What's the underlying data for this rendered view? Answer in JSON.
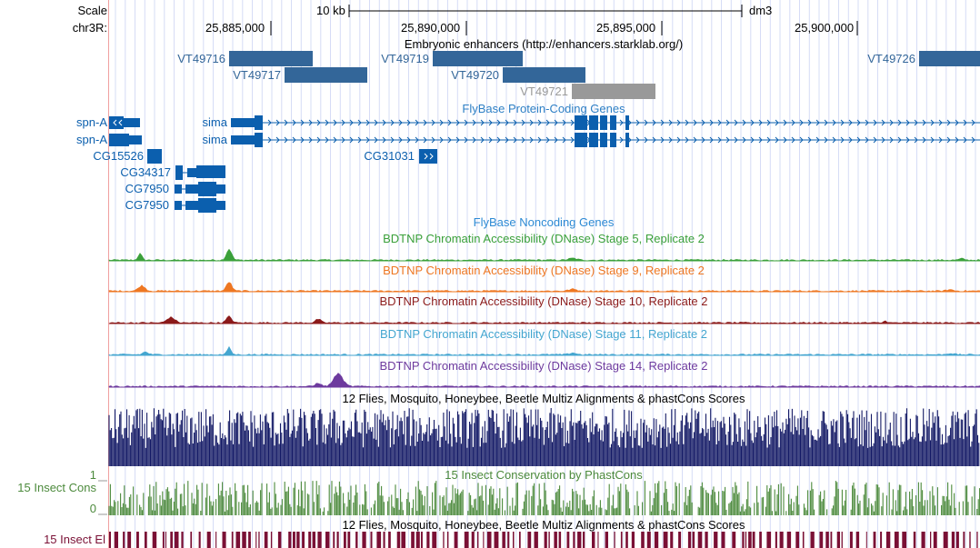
{
  "ruler": {
    "scale_label": "Scale",
    "scale_bar_label": "10 kb",
    "assembly": "dm3",
    "chrom_label": "chr3R:",
    "ticks": [
      "25,885,000",
      "25,890,000",
      "25,895,000",
      "25,900,000"
    ]
  },
  "tracks": {
    "enhancers": {
      "title": "Embryonic enhancers (http://enhancers.starklab.org/)",
      "color": "#336699",
      "items": [
        {
          "name": "VT49716"
        },
        {
          "name": "VT49717"
        },
        {
          "name": "VT49719"
        },
        {
          "name": "VT49720"
        },
        {
          "name": "VT49721"
        },
        {
          "name": "VT49726"
        }
      ]
    },
    "protein_coding": {
      "title": "FlyBase Protein-Coding Genes",
      "color": "#0b5fae",
      "genes": [
        {
          "name": "spn-A"
        },
        {
          "name": "sima"
        },
        {
          "name": "spn-A"
        },
        {
          "name": "sima"
        },
        {
          "name": "CG15526"
        },
        {
          "name": "CG31031"
        },
        {
          "name": "CG34317"
        },
        {
          "name": "CG7950"
        },
        {
          "name": "CG7950"
        }
      ]
    },
    "noncoding": {
      "title": "FlyBase Noncoding Genes",
      "color": "#2d8ad4"
    },
    "dnase": [
      {
        "title": "BDTNP Chromatin Accessibility (DNase) Stage 5, Replicate 2",
        "color": "#3aa03a"
      },
      {
        "title": "BDTNP Chromatin Accessibility (DNase) Stage 9, Replicate 2",
        "color": "#ee7722"
      },
      {
        "title": "BDTNP Chromatin Accessibility (DNase) Stage 10, Replicate 2",
        "color": "#8b1a1a"
      },
      {
        "title": "BDTNP Chromatin Accessibility (DNase) Stage 11, Replicate 2",
        "color": "#44a6d0"
      },
      {
        "title": "BDTNP Chromatin Accessibility (DNase) Stage 14, Replicate 2",
        "color": "#6d3a9e"
      }
    ],
    "multiz": {
      "title": "12 Flies, Mosquito, Honeybee, Beetle Multiz Alignments & phastCons Scores",
      "color": "#141a66"
    },
    "insect_cons": {
      "title": "15 Insect Conservation by PhastCons",
      "left_label": "15 Insect Cons",
      "ymax_label": "1",
      "ymin_label": "0",
      "color": "#4c8a3c"
    },
    "insect_el": {
      "title": "12 Flies, Mosquito, Honeybee, Beetle Multiz Alignments & phastCons Scores",
      "left_label": "15 Insect El",
      "color": "#7a1035"
    }
  }
}
